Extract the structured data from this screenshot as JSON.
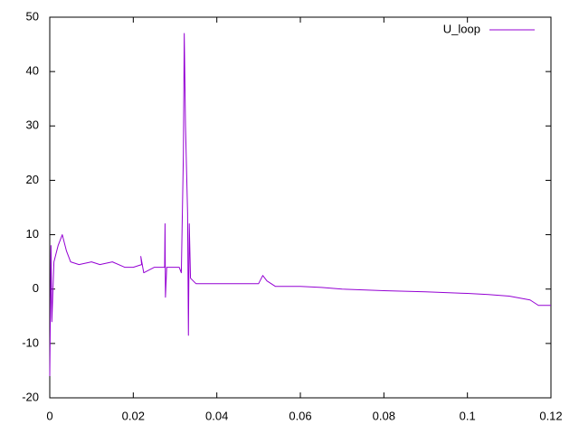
{
  "chart_data": {
    "type": "line",
    "x": [
      0,
      0.0003,
      0.0005,
      0.001,
      0.002,
      0.003,
      0.004,
      0.005,
      0.007,
      0.01,
      0.012,
      0.015,
      0.018,
      0.02,
      0.022,
      0.0218,
      0.0225,
      0.025,
      0.0275,
      0.0276,
      0.0277,
      0.028,
      0.031,
      0.0315,
      0.032,
      0.0322,
      0.0325,
      0.033,
      0.0332,
      0.0334,
      0.0337,
      0.035,
      0.04,
      0.045,
      0.05,
      0.051,
      0.052,
      0.054,
      0.06,
      0.065,
      0.07,
      0.08,
      0.09,
      0.1,
      0.105,
      0.11,
      0.115,
      0.117,
      0.12
    ],
    "series": [
      {
        "name": "U_loop",
        "color": "#9400d3",
        "values": [
          -16,
          8,
          -6,
          5,
          8,
          10,
          7,
          5,
          4.5,
          5,
          4.5,
          5,
          4,
          4,
          4.5,
          6,
          3,
          4,
          4,
          12,
          -1.5,
          4,
          4,
          3,
          25,
          47,
          30,
          14,
          -8.5,
          12,
          2,
          1,
          1,
          1,
          1,
          2.5,
          1.5,
          0.5,
          0.5,
          0.3,
          0,
          -0.3,
          -0.5,
          -0.8,
          -1,
          -1.3,
          -2,
          -3,
          -3
        ]
      }
    ],
    "xlim": [
      0,
      0.12
    ],
    "xticks": [
      0,
      0.02,
      0.04,
      0.06,
      0.08,
      0.1,
      0.12
    ],
    "ylim": [
      -20,
      50
    ],
    "yticks": [
      -20,
      -10,
      0,
      10,
      20,
      30,
      40,
      50
    ],
    "grid": false,
    "legend": "top-right"
  }
}
